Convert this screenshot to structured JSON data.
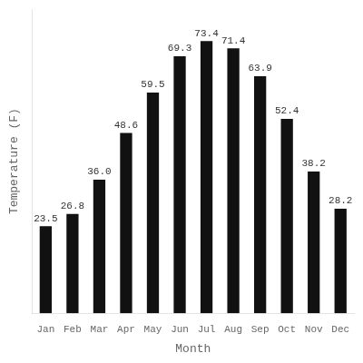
{
  "chart_data": {
    "type": "bar",
    "categories": [
      "Jan",
      "Feb",
      "Mar",
      "Apr",
      "May",
      "Jun",
      "Jul",
      "Aug",
      "Sep",
      "Oct",
      "Nov",
      "Dec"
    ],
    "values": [
      23.5,
      26.8,
      36.0,
      48.6,
      59.5,
      69.3,
      73.4,
      71.4,
      63.9,
      52.4,
      38.2,
      28.2
    ],
    "value_labels": [
      "23.5",
      "26.8",
      "36.0",
      "48.6",
      "59.5",
      "69.3",
      "73.4",
      "71.4",
      "63.9",
      "52.4",
      "38.2",
      "28.2"
    ],
    "color": "#111111",
    "xlabel": "Month",
    "ylabel": "Temperature (F)",
    "ylim": [
      0,
      82
    ],
    "grid": false,
    "data_labels": true,
    "tick_labels": "x"
  }
}
